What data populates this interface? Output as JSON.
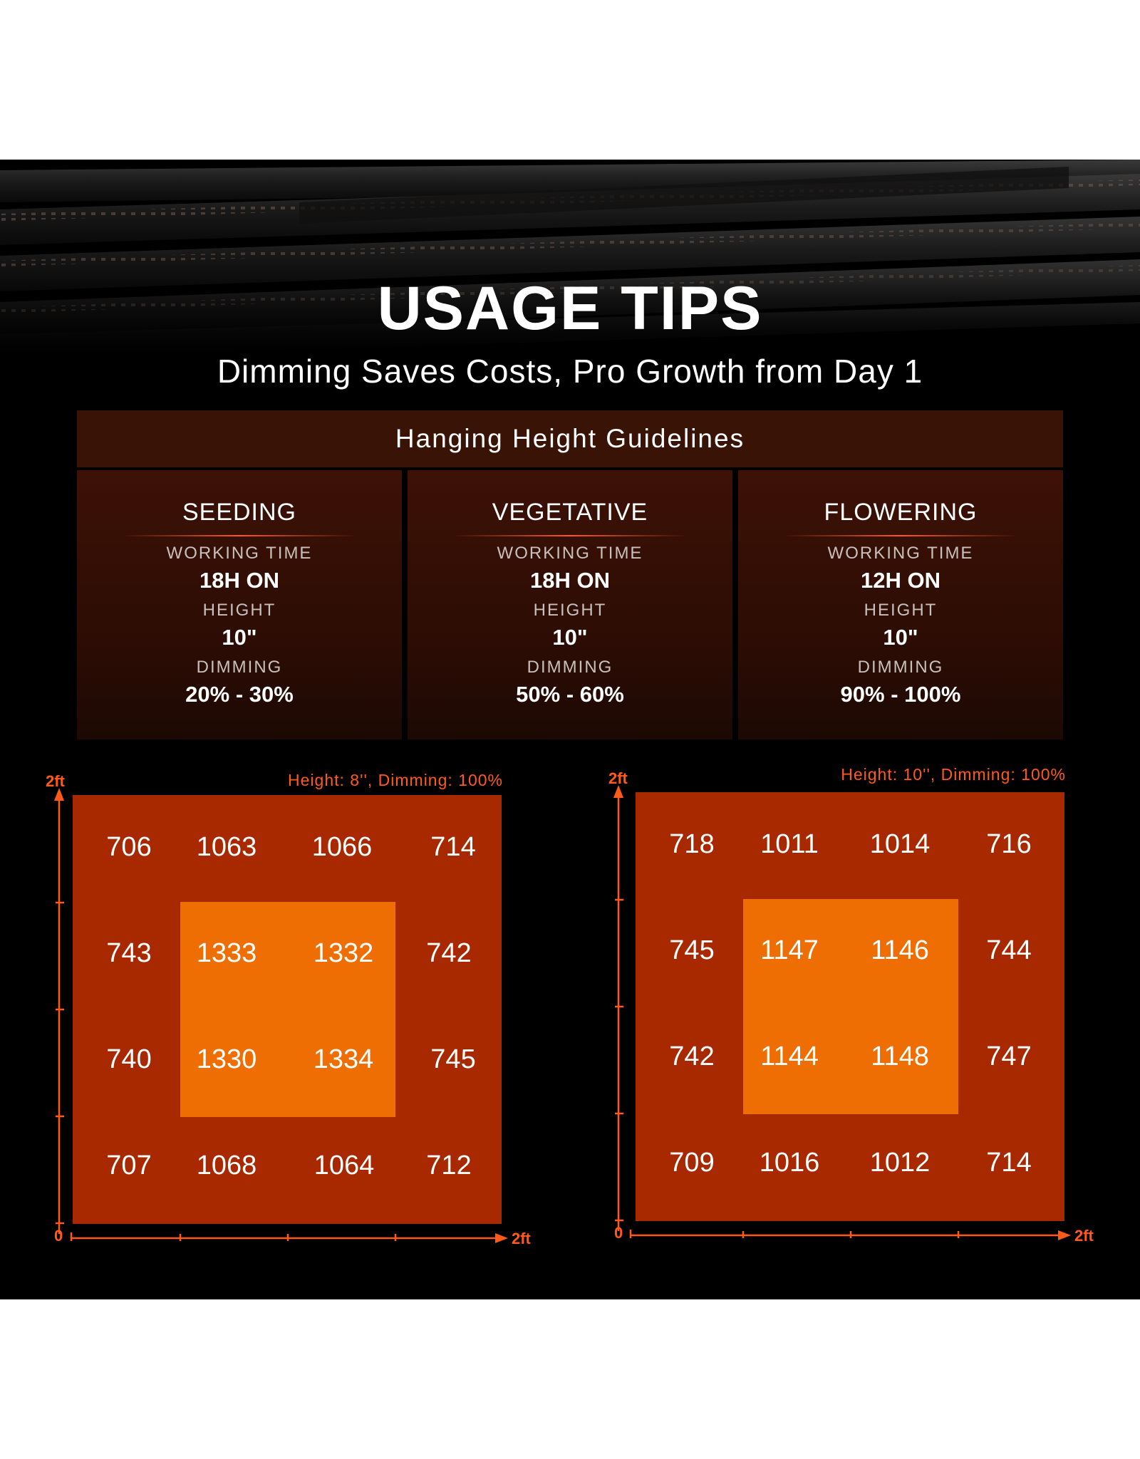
{
  "header": {
    "title": "USAGE TIPS",
    "subtitle": "Dimming Saves Costs, Pro Growth from Day 1"
  },
  "guidelines": {
    "title": "Hanging Height Guidelines",
    "labels": {
      "working_time": "WORKING TIME",
      "height": "HEIGHT",
      "dimming": "DIMMING"
    },
    "stages": [
      {
        "name": "SEEDING",
        "working_time": "18H ON",
        "height": "10\"",
        "dimming": "20% - 30%"
      },
      {
        "name": "VEGETATIVE",
        "working_time": "18H ON",
        "height": "10\"",
        "dimming": "50% - 60%"
      },
      {
        "name": "FLOWERING",
        "working_time": "12H ON",
        "height": "10\"",
        "dimming": "90% - 100%"
      }
    ]
  },
  "ppfd_maps": [
    {
      "label": "Height: 8'', Dimming: 100%",
      "axis": {
        "y_max": "2ft",
        "x_max": "2ft",
        "origin": "0"
      },
      "rows": [
        [
          "706",
          "1063",
          "1066",
          "714"
        ],
        [
          "743",
          "1333",
          "1332",
          "742"
        ],
        [
          "740",
          "1330",
          "1334",
          "745"
        ],
        [
          "707",
          "1068",
          "1064",
          "712"
        ]
      ]
    },
    {
      "label": "Height: 10'', Dimming: 100%",
      "axis": {
        "y_max": "2ft",
        "x_max": "2ft",
        "origin": "0"
      },
      "rows": [
        [
          "718",
          "1011",
          "1014",
          "716"
        ],
        [
          "745",
          "1147",
          "1146",
          "744"
        ],
        [
          "742",
          "1144",
          "1148",
          "747"
        ],
        [
          "709",
          "1016",
          "1012",
          "714"
        ]
      ]
    }
  ],
  "colors": {
    "outer_zone": "#a82900",
    "inner_zone": "#ee6e03",
    "accent": "#ff5a1a",
    "panel": "#3a1307"
  }
}
